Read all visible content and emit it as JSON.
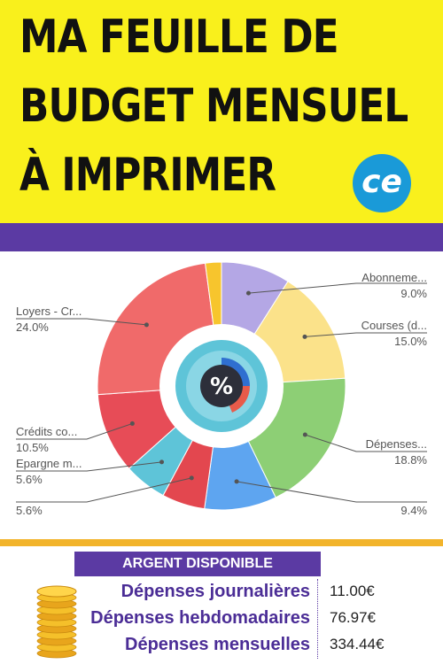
{
  "header": {
    "line1": "MA FEUILLE DE",
    "line2": "BUDGET MENSUEL",
    "line3": "À IMPRIMER",
    "logo_text": "ce"
  },
  "colors": {
    "yellow": "#f9f01c",
    "purple": "#5b3aa3",
    "orange": "#f2b42c"
  },
  "chart_data": {
    "type": "pie",
    "center_symbol": "%",
    "slices": [
      {
        "label": "Abonneme...",
        "value": 9.0,
        "pct_label": "9.0%",
        "color": "#b4a7e5"
      },
      {
        "label": "Courses (d...",
        "value": 15.0,
        "pct_label": "15.0%",
        "color": "#fbe28a"
      },
      {
        "label": "Dépenses...",
        "value": 18.8,
        "pct_label": "18.8%",
        "color": "#8dcf75"
      },
      {
        "label": "",
        "value": 9.4,
        "pct_label": "9.4%",
        "color": "#5ea5f0"
      },
      {
        "label": "",
        "value": 5.6,
        "pct_label": "5.6%",
        "color": "#e3474f"
      },
      {
        "label": "Epargne m...",
        "value": 5.6,
        "pct_label": "5.6%",
        "color": "#5ec4d8"
      },
      {
        "label": "Crédits co...",
        "value": 10.5,
        "pct_label": "10.5%",
        "color": "#e74c57"
      },
      {
        "label": "Loyers - Cr...",
        "value": 24.0,
        "pct_label": "24.0%",
        "color": "#f06a6a"
      },
      {
        "label": "",
        "value": 2.1,
        "pct_label": "",
        "color": "#f7c52d"
      }
    ]
  },
  "summary": {
    "title": "ARGENT DISPONIBLE",
    "rows": [
      {
        "label": "Dépenses journalières",
        "value": "11.00€"
      },
      {
        "label": "Dépenses hebdomadaires",
        "value": "76.97€"
      },
      {
        "label": "Dépenses mensuelles",
        "value": "334.44€"
      }
    ]
  }
}
